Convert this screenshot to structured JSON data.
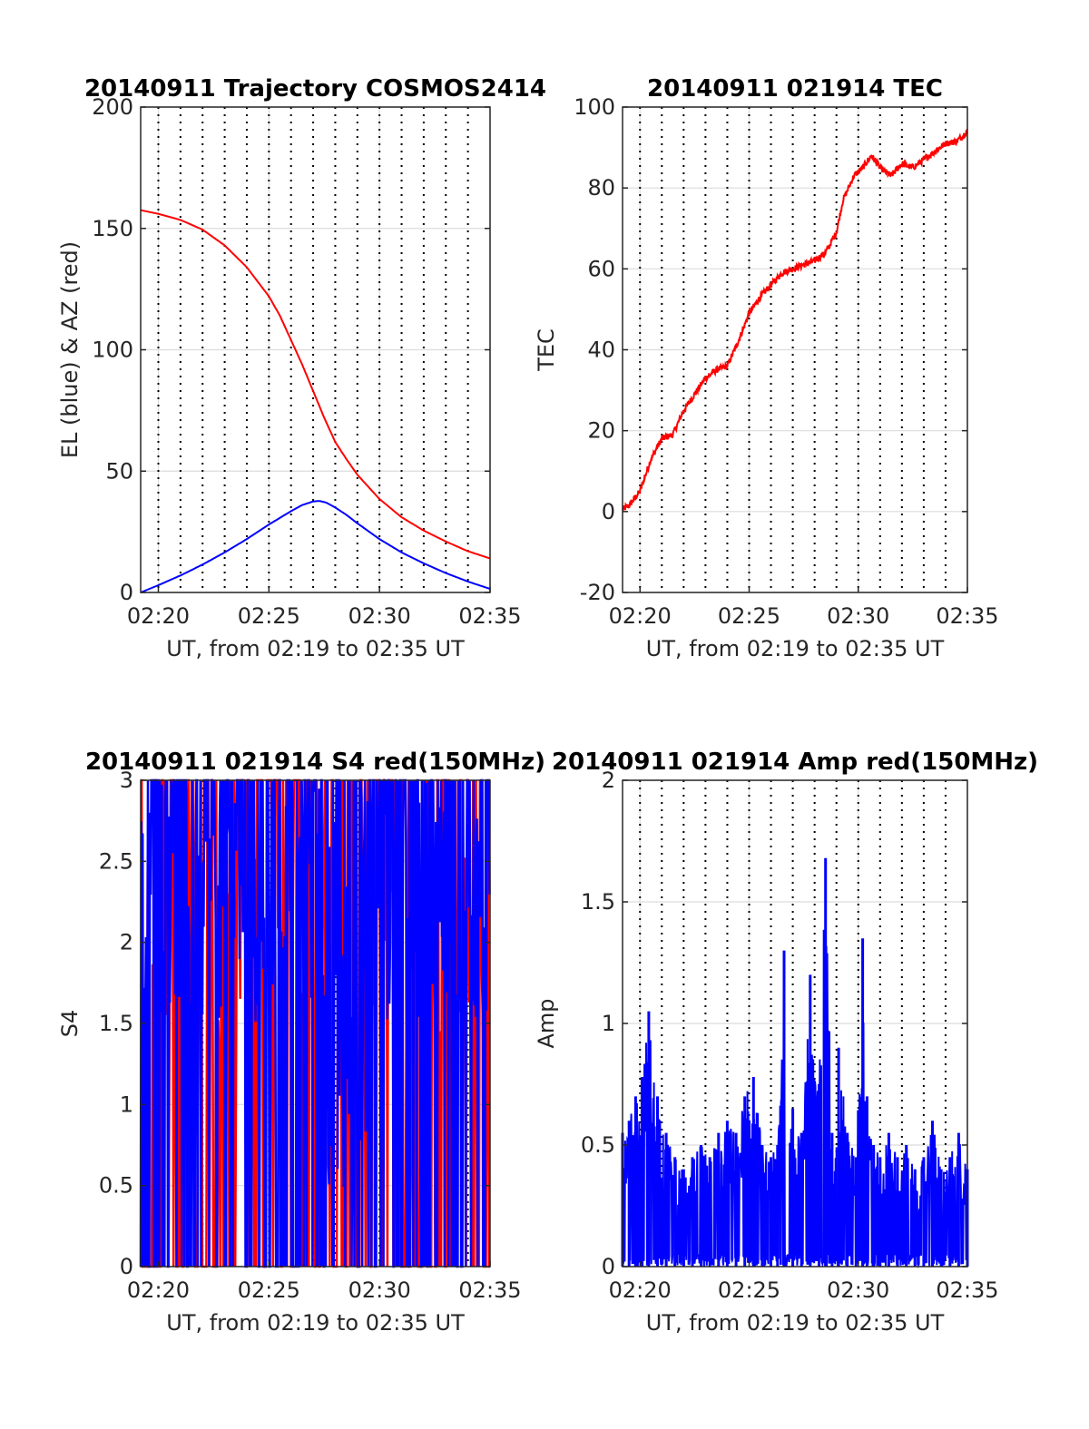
{
  "chart_data": [
    {
      "type": "line",
      "title": "20140911 Trajectory COSMOS2414",
      "xlabel": "UT, from 02:19 to 02:35 UT",
      "ylabel": "EL (blue) & AZ (red)",
      "xlim": [
        19.2,
        35.0
      ],
      "ylim": [
        0,
        200
      ],
      "xticks": [
        20,
        25,
        30,
        35
      ],
      "xtick_labels": [
        "02:20",
        "02:25",
        "02:30",
        "02:35"
      ],
      "yticks": [
        0,
        50,
        100,
        150,
        200
      ],
      "ytick_labels": [
        "0",
        "50",
        "100",
        "150",
        "200"
      ],
      "grid": true,
      "series": [
        {
          "color": "#ff0000",
          "x": [
            19.2,
            20,
            21,
            22,
            23,
            24,
            25,
            25.5,
            26,
            26.5,
            27,
            27.5,
            28,
            28.5,
            29,
            30,
            31,
            32,
            33,
            34,
            35
          ],
          "values": [
            157.5,
            156,
            153.5,
            149.5,
            143,
            134,
            122,
            114,
            104,
            94,
            83,
            72,
            62,
            55,
            48.5,
            38.5,
            31,
            25.5,
            21,
            17,
            14
          ]
        },
        {
          "color": "#0000ff",
          "x": [
            19.2,
            20,
            21,
            22,
            23,
            24,
            25,
            26,
            26.5,
            27,
            27.3,
            27.6,
            28,
            28.5,
            29,
            30,
            31,
            32,
            33,
            34,
            35
          ],
          "values": [
            0,
            3,
            7,
            11.5,
            16.5,
            22,
            28,
            33.5,
            36,
            37.5,
            37.7,
            37,
            35,
            32,
            28.5,
            22,
            16.5,
            12,
            8,
            4.5,
            1.5
          ]
        }
      ]
    },
    {
      "type": "line",
      "title": "20140911 021914 TEC",
      "xlabel": "UT, from 02:19 to 02:35 UT",
      "ylabel": "TEC",
      "xlim": [
        19.2,
        35.0
      ],
      "ylim": [
        -20,
        100
      ],
      "xticks": [
        20,
        25,
        30,
        35
      ],
      "xtick_labels": [
        "02:20",
        "02:25",
        "02:30",
        "02:35"
      ],
      "yticks": [
        -20,
        0,
        20,
        40,
        60,
        80,
        100
      ],
      "ytick_labels": [
        "-20",
        "0",
        "20",
        "40",
        "60",
        "80",
        "100"
      ],
      "grid": true,
      "series": [
        {
          "color": "#ff0000",
          "x": [
            19.2,
            19.5,
            20,
            20.5,
            21,
            21.5,
            22,
            22.5,
            23,
            23.5,
            24,
            24.5,
            25,
            25.5,
            26,
            26.5,
            27,
            27.5,
            28,
            28.5,
            29,
            29.3,
            29.8,
            30.2,
            30.6,
            31,
            31.5,
            32,
            32.5,
            33,
            33.5,
            34,
            34.5,
            35
          ],
          "values": [
            0.5,
            1.5,
            5,
            13,
            18,
            19,
            25,
            29,
            33,
            35,
            36,
            42,
            49,
            53,
            56,
            59,
            60,
            61,
            62,
            64,
            69,
            77,
            83,
            85,
            88,
            85,
            83,
            86,
            85,
            87,
            89,
            91,
            91.5,
            94
          ]
        }
      ]
    },
    {
      "type": "line",
      "title": "20140911 021914 S4 red(150MHz)",
      "xlabel": "UT, from 02:19 to 02:35 UT",
      "ylabel": "S4",
      "xlim": [
        19.2,
        35.0
      ],
      "ylim": [
        0,
        3
      ],
      "xticks": [
        20,
        25,
        30,
        35
      ],
      "xtick_labels": [
        "02:20",
        "02:25",
        "02:30",
        "02:35"
      ],
      "yticks": [
        0,
        0.5,
        1,
        1.5,
        2,
        2.5,
        3
      ],
      "ytick_labels": [
        "0",
        "0.5",
        "1",
        "1.5",
        "2",
        "2.5",
        "3"
      ],
      "grid": true,
      "series": [
        {
          "color": "#ff0000",
          "description": "dense oscillating trace between 0 and 3"
        },
        {
          "color": "#0000ff",
          "description": "dense oscillating trace between 0 and 3"
        }
      ]
    },
    {
      "type": "line",
      "title": "20140911 021914 Amp red(150MHz)",
      "xlabel": "UT, from 02:19 to 02:35 UT",
      "ylabel": "Amp",
      "xlim": [
        19.2,
        35.0
      ],
      "ylim": [
        0,
        2
      ],
      "xticks": [
        20,
        25,
        30,
        35
      ],
      "xtick_labels": [
        "02:20",
        "02:25",
        "02:30",
        "02:35"
      ],
      "yticks": [
        0,
        0.5,
        1,
        1.5,
        2
      ],
      "ytick_labels": [
        "0",
        "0.5",
        "1",
        "1.5",
        "2"
      ],
      "grid": true,
      "series": [
        {
          "color": "#0000ff",
          "envelope_x": [
            19.2,
            19.5,
            19.8,
            20.1,
            20.4,
            20.8,
            21.2,
            21.6,
            22,
            22.4,
            22.8,
            23.2,
            23.6,
            24,
            24.4,
            24.8,
            25.2,
            25.6,
            26,
            26.3,
            26.6,
            27,
            27.4,
            27.8,
            28.2,
            28.5,
            28.8,
            29.1,
            29.5,
            29.9,
            30.2,
            30.4,
            30.7,
            31,
            31.4,
            31.8,
            32.2,
            32.6,
            33,
            33.4,
            33.8,
            34.2,
            34.6,
            35
          ],
          "envelope_values": [
            0.55,
            0.6,
            0.7,
            0.78,
            1.05,
            0.7,
            0.55,
            0.45,
            0.4,
            0.45,
            0.5,
            0.45,
            0.55,
            0.6,
            0.55,
            0.7,
            0.78,
            0.5,
            0.45,
            0.5,
            1.3,
            0.65,
            0.55,
            1.2,
            0.75,
            1.68,
            0.55,
            0.9,
            0.55,
            0.45,
            1.35,
            0.7,
            0.5,
            0.45,
            0.55,
            0.45,
            0.5,
            0.4,
            0.45,
            0.6,
            0.4,
            0.45,
            0.55,
            0.4
          ]
        }
      ]
    }
  ]
}
